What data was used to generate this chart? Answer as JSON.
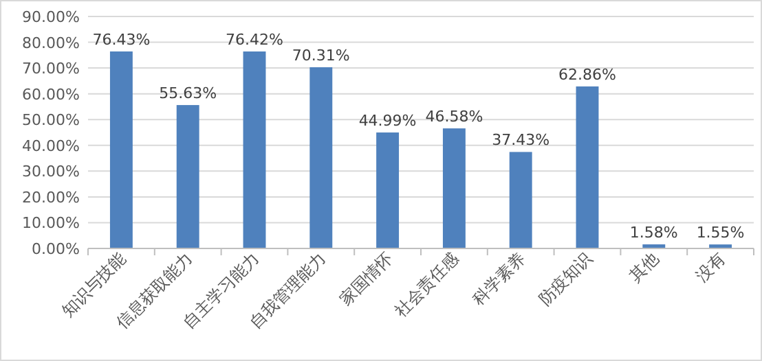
{
  "chart_data": {
    "type": "bar",
    "categories": [
      "知识与技能",
      "信息获取能力",
      "自主学习能力",
      "自我管理能力",
      "家国情怀",
      "社会责任感",
      "科学素养",
      "防疫知识",
      "其他",
      "没有"
    ],
    "values": [
      76.43,
      55.63,
      76.42,
      70.31,
      44.99,
      46.58,
      37.43,
      62.86,
      1.58,
      1.55
    ],
    "value_labels": [
      "76.43%",
      "55.63%",
      "76.42%",
      "70.31%",
      "44.99%",
      "46.58%",
      "37.43%",
      "62.86%",
      "1.58%",
      "1.55%"
    ],
    "color": "#4f81bd",
    "ylim": [
      0,
      90
    ],
    "yticks": [
      {
        "value": 0,
        "label": "0.00%"
      },
      {
        "value": 10,
        "label": "10.00%"
      },
      {
        "value": 20,
        "label": "20.00%"
      },
      {
        "value": 30,
        "label": "30.00%"
      },
      {
        "value": 40,
        "label": "40.00%"
      },
      {
        "value": 50,
        "label": "50.00%"
      },
      {
        "value": 60,
        "label": "60.00%"
      },
      {
        "value": 70,
        "label": "70.00%"
      },
      {
        "value": 80,
        "label": "80.00%"
      },
      {
        "value": 90,
        "label": "90.00%"
      }
    ],
    "grid": "y"
  }
}
